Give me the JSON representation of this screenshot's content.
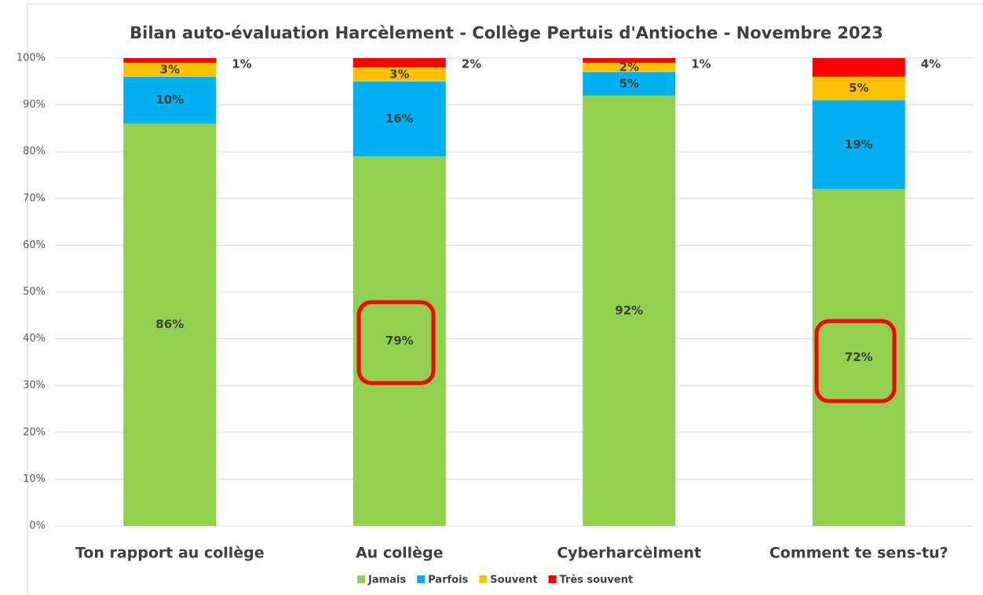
{
  "chart_data": {
    "type": "stacked_bar",
    "title": "Bilan auto-évaluation Harcèlement - Collège Pertuis d'Antioche - Novembre 2023",
    "categories": [
      "Ton rapport au collège",
      "Au collège",
      "Cyberharcèlment",
      "Comment te sens-tu?"
    ],
    "series": [
      {
        "name": "Jamais",
        "color": "#92d050",
        "values": [
          86,
          79,
          92,
          72
        ],
        "value_labels": [
          "86%",
          "79%",
          "92%",
          "72%"
        ]
      },
      {
        "name": "Parfois",
        "color": "#00b0f0",
        "values": [
          10,
          16,
          5,
          19
        ],
        "value_labels": [
          "10%",
          "16%",
          "5%",
          "19%"
        ]
      },
      {
        "name": "Souvent",
        "color": "#ffc000",
        "values": [
          3,
          3,
          2,
          5
        ],
        "value_labels": [
          "3%",
          "3%",
          "2%",
          "5%"
        ]
      },
      {
        "name": "Très souvent",
        "color": "#ff0000",
        "values": [
          1,
          2,
          1,
          4
        ],
        "value_labels": [
          "1%",
          "2%",
          "1%",
          "4%"
        ]
      }
    ],
    "ylim": [
      0,
      100
    ],
    "yticks": [
      {
        "value": 0,
        "label": "0%"
      },
      {
        "value": 10,
        "label": "10%"
      },
      {
        "value": 20,
        "label": "20%"
      },
      {
        "value": 30,
        "label": "30%"
      },
      {
        "value": 40,
        "label": "40%"
      },
      {
        "value": 50,
        "label": "50%"
      },
      {
        "value": 60,
        "label": "60%"
      },
      {
        "value": 70,
        "label": "70%"
      },
      {
        "value": 80,
        "label": "80%"
      },
      {
        "value": 90,
        "label": "90%"
      },
      {
        "value": 100,
        "label": "100%"
      }
    ],
    "grid": true,
    "legend": "bottom"
  }
}
